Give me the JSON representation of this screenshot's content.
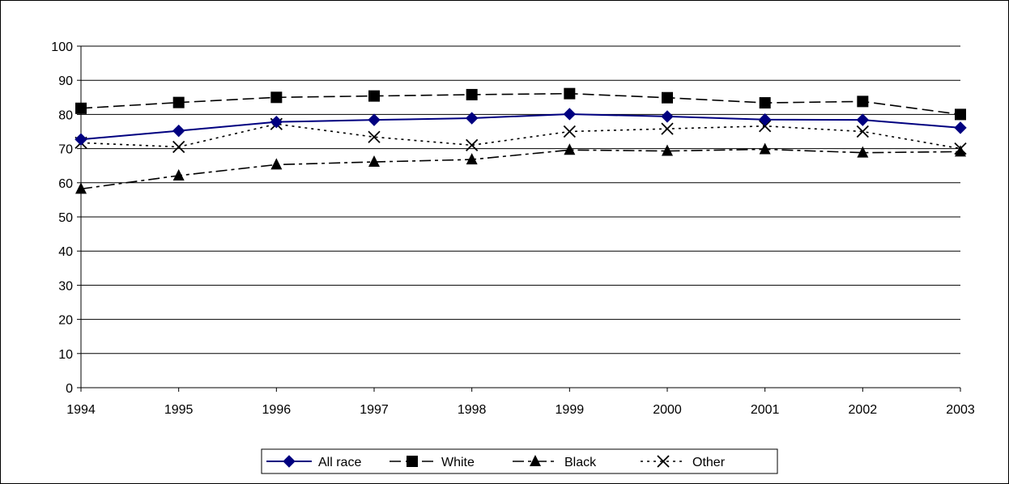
{
  "chart_data": {
    "type": "line",
    "x": [
      "1994",
      "1995",
      "1996",
      "1997",
      "1998",
      "1999",
      "2000",
      "2001",
      "2002",
      "2003"
    ],
    "ylim": [
      0,
      100
    ],
    "yticks": [
      "0",
      "10",
      "20",
      "30",
      "40",
      "50",
      "60",
      "70",
      "80",
      "90",
      "100"
    ],
    "grid": "horizontal",
    "legend_position": "bottom",
    "series": [
      {
        "name": "All race",
        "color": "#000080",
        "marker": "diamond",
        "line_style": "solid",
        "values": [
          72.7,
          75.2,
          77.8,
          78.4,
          78.9,
          80.1,
          79.4,
          78.5,
          78.4,
          76.1
        ]
      },
      {
        "name": "White",
        "color": "#000000",
        "marker": "square",
        "line_style": "dashed",
        "values": [
          81.8,
          83.5,
          85.0,
          85.4,
          85.8,
          86.1,
          84.9,
          83.4,
          83.8,
          80.0
        ]
      },
      {
        "name": "Black",
        "color": "#000000",
        "marker": "triangle",
        "line_style": "dash-dot",
        "values": [
          58.2,
          62.1,
          65.3,
          66.1,
          66.8,
          69.6,
          69.3,
          69.8,
          68.8,
          69.1
        ]
      },
      {
        "name": "Other",
        "color": "#000000",
        "marker": "x",
        "line_style": "dotted",
        "values": [
          71.7,
          70.5,
          77.2,
          73.4,
          71.0,
          75.0,
          75.8,
          76.6,
          75.0,
          70.0
        ]
      }
    ]
  }
}
